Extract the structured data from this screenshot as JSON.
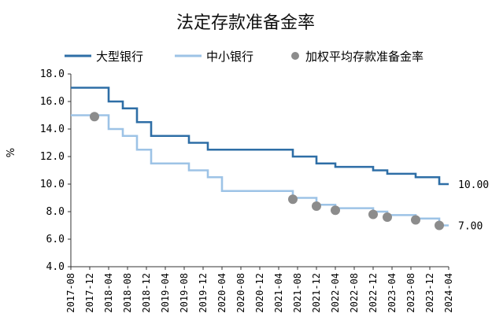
{
  "chart_data": {
    "type": "line",
    "title": "法定存款准备金率",
    "ylabel": "%",
    "xlabel": "",
    "ylim": [
      4.0,
      18.0
    ],
    "y_ticks": [
      "4.0",
      "6.0",
      "8.0",
      "10.0",
      "12.0",
      "14.0",
      "16.0",
      "18.0"
    ],
    "x_range": [
      "2017-08",
      "2024-04"
    ],
    "x_ticks": [
      "2017-08",
      "2017-12",
      "2018-04",
      "2018-08",
      "2018-12",
      "2019-04",
      "2019-08",
      "2019-12",
      "2020-04",
      "2020-08",
      "2020-12",
      "2021-04",
      "2021-08",
      "2021-12",
      "2022-04",
      "2022-08",
      "2022-12",
      "2023-04",
      "2023-08",
      "2023-12",
      "2024-04"
    ],
    "grid": false,
    "legend_position": "top",
    "series": [
      {
        "name": "大型银行",
        "style": "step-line",
        "color": "#2e6ea6",
        "points": [
          [
            "2017-08",
            17.0
          ],
          [
            "2018-04",
            16.0
          ],
          [
            "2018-07",
            15.5
          ],
          [
            "2018-10",
            14.5
          ],
          [
            "2019-01",
            13.5
          ],
          [
            "2019-09",
            13.0
          ],
          [
            "2020-01",
            12.5
          ],
          [
            "2021-07",
            12.0
          ],
          [
            "2021-12",
            11.5
          ],
          [
            "2022-04",
            11.25
          ],
          [
            "2022-12",
            11.0
          ],
          [
            "2023-03",
            10.75
          ],
          [
            "2023-09",
            10.5
          ],
          [
            "2024-02",
            10.0
          ],
          [
            "2024-04",
            10.0
          ]
        ],
        "end_label": "10.00"
      },
      {
        "name": "中小银行",
        "style": "step-line",
        "color": "#9dc3e6",
        "points": [
          [
            "2017-08",
            15.0
          ],
          [
            "2018-04",
            14.0
          ],
          [
            "2018-07",
            13.5
          ],
          [
            "2018-10",
            12.5
          ],
          [
            "2019-01",
            11.5
          ],
          [
            "2019-09",
            11.0
          ],
          [
            "2020-01",
            10.5
          ],
          [
            "2020-04",
            9.5
          ],
          [
            "2021-07",
            9.0
          ],
          [
            "2021-12",
            8.5
          ],
          [
            "2022-04",
            8.25
          ],
          [
            "2022-12",
            8.0
          ],
          [
            "2023-03",
            7.75
          ],
          [
            "2023-09",
            7.5
          ],
          [
            "2024-02",
            7.0
          ],
          [
            "2024-04",
            7.0
          ]
        ],
        "end_label": "7.00"
      },
      {
        "name": "加权平均存款准备金率",
        "style": "scatter",
        "color": "#8c8c8c",
        "points": [
          [
            "2018-01",
            14.9
          ],
          [
            "2021-07",
            8.9
          ],
          [
            "2021-12",
            8.4
          ],
          [
            "2022-04",
            8.1
          ],
          [
            "2022-12",
            7.8
          ],
          [
            "2023-03",
            7.6
          ],
          [
            "2023-09",
            7.4
          ],
          [
            "2024-02",
            7.0
          ]
        ]
      }
    ]
  }
}
